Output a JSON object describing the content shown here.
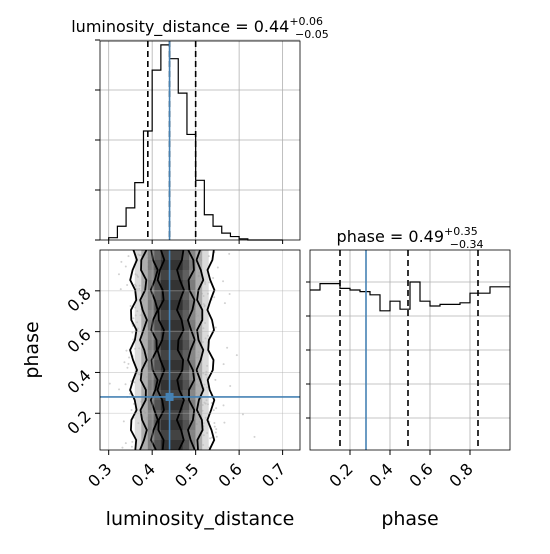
{
  "chart_data": [
    {
      "type": "histogram",
      "panel": "luminosity_distance marginal",
      "title_param": "luminosity_distance",
      "title_value": "0.44",
      "title_err_plus": "+0.06",
      "title_err_minus": "−0.05",
      "xlim": [
        0.28,
        0.74
      ],
      "bin_edges": [
        0.3,
        0.32,
        0.34,
        0.36,
        0.38,
        0.4,
        0.42,
        0.44,
        0.46,
        0.48,
        0.5,
        0.52,
        0.54,
        0.56,
        0.58,
        0.6,
        0.62,
        0.64,
        0.66,
        0.68,
        0.7
      ],
      "counts": [
        2,
        12,
        28,
        50,
        95,
        148,
        170,
        158,
        128,
        92,
        52,
        22,
        12,
        6,
        3,
        1,
        0,
        0,
        0,
        0
      ],
      "quantile_lines": [
        0.39,
        0.44,
        0.5
      ],
      "truth": 0.44,
      "grid": true
    },
    {
      "type": "histogram",
      "panel": "phase marginal",
      "title_param": "phase",
      "title_value": "0.49",
      "title_err_plus": "+0.35",
      "title_err_minus": "−0.34",
      "xlim": [
        0.0,
        1.0
      ],
      "bin_edges": [
        0.0,
        0.05,
        0.1,
        0.15,
        0.2,
        0.25,
        0.3,
        0.35,
        0.4,
        0.45,
        0.5,
        0.55,
        0.6,
        0.65,
        0.7,
        0.75,
        0.8,
        0.85,
        0.9,
        0.95,
        1.0
      ],
      "counts": [
        100,
        104,
        104,
        101,
        100,
        99,
        97,
        87,
        93,
        88,
        105,
        93,
        90,
        91,
        91,
        92,
        98,
        98,
        102,
        102
      ],
      "quantile_lines": [
        0.15,
        0.49,
        0.84
      ],
      "truth": 0.28,
      "grid": true
    },
    {
      "type": "heatmap",
      "panel": "2D joint",
      "xlabel": "luminosity_distance",
      "ylabel": "phase",
      "xlim": [
        0.28,
        0.74
      ],
      "ylim": [
        0.02,
        1.0
      ],
      "x_ticks": [
        "0.3",
        "0.4",
        "0.5",
        "0.6",
        "0.7"
      ],
      "y_ticks": [
        "0.2",
        "0.4",
        "0.6",
        "0.8"
      ],
      "truth": {
        "x": 0.44,
        "y": 0.28
      },
      "grid": true
    }
  ],
  "labels": {
    "x_left": "luminosity_distance",
    "x_right": "phase",
    "y_left": "phase",
    "right_x_ticks": [
      "0.2",
      "0.4",
      "0.6",
      "0.8"
    ]
  },
  "colors": {
    "truth": "#4682b4",
    "hist": "#000000",
    "grid": "#b0b0b0"
  }
}
